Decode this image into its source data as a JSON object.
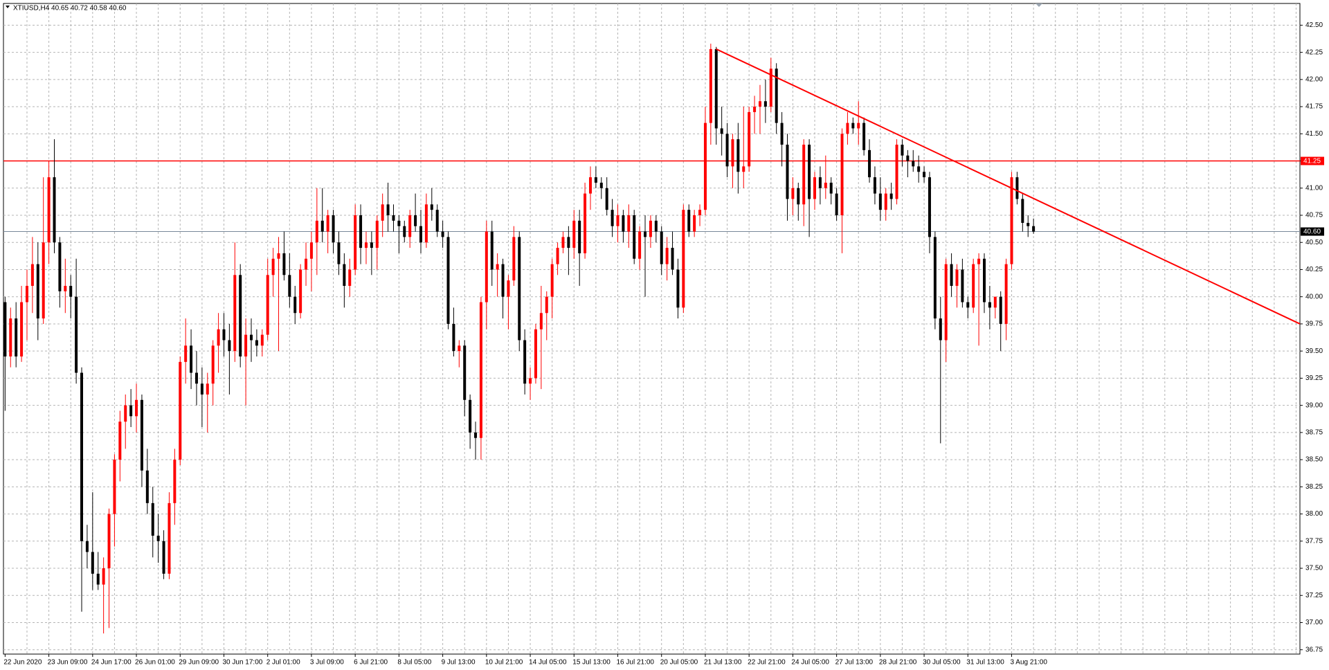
{
  "chart_data": {
    "type": "candlestick",
    "title": "XTIUSD,H4  40.65 40.72 40.58 40.60",
    "up_color": "#ff0000",
    "down_color": "#000000",
    "grid": true,
    "xlim": [
      -0.3,
      236.7
    ],
    "ylim": [
      36.71,
      42.7
    ],
    "yticks": [
      {
        "value": 42.5,
        "label": "42.50"
      },
      {
        "value": 42.25,
        "label": "42.25"
      },
      {
        "value": 42.0,
        "label": "42.00"
      },
      {
        "value": 41.75,
        "label": "41.75"
      },
      {
        "value": 41.5,
        "label": "41.50"
      },
      {
        "value": 41.25,
        "label": "41.25"
      },
      {
        "value": 41.0,
        "label": "41.00"
      },
      {
        "value": 40.75,
        "label": "40.75"
      },
      {
        "value": 40.5,
        "label": "40.50"
      },
      {
        "value": 40.25,
        "label": "40.25"
      },
      {
        "value": 40.0,
        "label": "40.00"
      },
      {
        "value": 39.75,
        "label": "39.75"
      },
      {
        "value": 39.5,
        "label": "39.50"
      },
      {
        "value": 39.25,
        "label": "39.25"
      },
      {
        "value": 39.0,
        "label": "39.00"
      },
      {
        "value": 38.75,
        "label": "38.75"
      },
      {
        "value": 38.5,
        "label": "38.50"
      },
      {
        "value": 38.25,
        "label": "38.25"
      },
      {
        "value": 38.0,
        "label": "38.00"
      },
      {
        "value": 37.75,
        "label": "37.75"
      },
      {
        "value": 37.5,
        "label": "37.50"
      },
      {
        "value": 37.25,
        "label": "37.25"
      },
      {
        "value": 37.0,
        "label": "37.00"
      },
      {
        "value": 36.75,
        "label": "36.75"
      }
    ],
    "hlines": [
      {
        "value": 41.25,
        "label": "41.25",
        "color": "#ff0000"
      },
      {
        "value": 40.6,
        "label": "40.60",
        "color": "#778899"
      }
    ],
    "trendline": {
      "x": [
        130,
        236.7
      ],
      "y": [
        42.28,
        39.75
      ],
      "color": "#ff0000"
    },
    "categories": [
      "22 Jun 2020",
      null,
      null,
      null,
      null,
      null,
      null,
      null,
      "23 Jun 09:00",
      null,
      null,
      null,
      null,
      null,
      null,
      null,
      "24 Jun 17:00",
      null,
      null,
      null,
      null,
      null,
      null,
      null,
      "26 Jun 01:00",
      null,
      null,
      null,
      null,
      null,
      null,
      null,
      "29 Jun 09:00",
      null,
      null,
      null,
      null,
      null,
      null,
      null,
      "30 Jun 17:00",
      null,
      null,
      null,
      null,
      null,
      null,
      null,
      "2 Jul 01:00",
      null,
      null,
      null,
      null,
      null,
      null,
      null,
      "3 Jul 09:00",
      null,
      null,
      null,
      null,
      null,
      null,
      null,
      "6 Jul 21:00",
      null,
      null,
      null,
      null,
      null,
      null,
      null,
      "8 Jul 05:00",
      null,
      null,
      null,
      null,
      null,
      null,
      null,
      "9 Jul 13:00",
      null,
      null,
      null,
      null,
      null,
      null,
      null,
      "10 Jul 21:00",
      null,
      null,
      null,
      null,
      null,
      null,
      null,
      "14 Jul 05:00",
      null,
      null,
      null,
      null,
      null,
      null,
      null,
      "15 Jul 13:00",
      null,
      null,
      null,
      null,
      null,
      null,
      null,
      "16 Jul 21:00",
      null,
      null,
      null,
      null,
      null,
      null,
      null,
      "20 Jul 05:00",
      null,
      null,
      null,
      null,
      null,
      null,
      null,
      "21 Jul 13:00",
      null,
      null,
      null,
      null,
      null,
      null,
      null,
      "22 Jul 21:00",
      null,
      null,
      null,
      null,
      null,
      null,
      null,
      "24 Jul 05:00",
      null,
      null,
      null,
      null,
      null,
      null,
      null,
      "27 Jul 13:00",
      null,
      null,
      null,
      null,
      null,
      null,
      null,
      "28 Jul 21:00",
      null,
      null,
      null,
      null,
      null,
      null,
      null,
      "30 Jul 05:00",
      null,
      null,
      null,
      null,
      null,
      null,
      null,
      "31 Jul 13:00",
      null,
      null,
      null,
      null,
      null,
      null,
      null,
      "3 Aug 21:00",
      null,
      null,
      null,
      null
    ],
    "ohlc": [
      [
        39.95,
        40.0,
        38.95,
        39.45
      ],
      [
        39.45,
        39.9,
        39.35,
        39.8
      ],
      [
        39.8,
        39.95,
        39.35,
        39.45
      ],
      [
        39.45,
        40.1,
        39.4,
        39.95
      ],
      [
        39.95,
        40.25,
        39.6,
        40.1
      ],
      [
        40.1,
        40.55,
        39.85,
        40.3
      ],
      [
        40.3,
        40.5,
        39.6,
        39.8
      ],
      [
        39.8,
        41.1,
        39.75,
        40.5
      ],
      [
        40.5,
        41.25,
        40.3,
        41.1
      ],
      [
        41.1,
        41.45,
        40.4,
        40.5
      ],
      [
        40.5,
        40.55,
        39.9,
        40.05
      ],
      [
        40.05,
        40.35,
        39.85,
        40.1
      ],
      [
        40.1,
        40.2,
        39.8,
        40.0
      ],
      [
        40.0,
        40.35,
        39.2,
        39.3
      ],
      [
        39.3,
        39.35,
        37.1,
        37.75
      ],
      [
        37.75,
        37.9,
        37.5,
        37.65
      ],
      [
        37.65,
        38.2,
        37.3,
        37.45
      ],
      [
        37.45,
        37.65,
        37.3,
        37.35
      ],
      [
        37.35,
        37.6,
        36.9,
        37.5
      ],
      [
        37.5,
        38.05,
        36.95,
        38.0
      ],
      [
        38.0,
        38.55,
        37.7,
        38.5
      ],
      [
        38.5,
        38.95,
        38.3,
        38.85
      ],
      [
        38.85,
        39.1,
        38.6,
        39.0
      ],
      [
        39.0,
        39.15,
        38.8,
        38.9
      ],
      [
        38.9,
        39.2,
        38.75,
        39.05
      ],
      [
        39.05,
        39.1,
        38.25,
        38.4
      ],
      [
        38.4,
        38.6,
        38.0,
        38.1
      ],
      [
        38.1,
        38.25,
        37.6,
        37.8
      ],
      [
        37.8,
        38.0,
        37.55,
        37.75
      ],
      [
        37.75,
        37.85,
        37.4,
        37.45
      ],
      [
        37.45,
        38.2,
        37.4,
        38.1
      ],
      [
        38.1,
        38.6,
        37.9,
        38.5
      ],
      [
        38.5,
        39.45,
        38.45,
        39.4
      ],
      [
        39.4,
        39.8,
        39.2,
        39.55
      ],
      [
        39.55,
        39.7,
        39.15,
        39.3
      ],
      [
        39.3,
        39.5,
        39.0,
        39.2
      ],
      [
        39.2,
        39.35,
        38.8,
        39.1
      ],
      [
        39.1,
        39.3,
        38.75,
        39.2
      ],
      [
        39.2,
        39.6,
        39.0,
        39.55
      ],
      [
        39.55,
        39.85,
        39.3,
        39.7
      ],
      [
        39.7,
        39.85,
        39.45,
        39.6
      ],
      [
        39.6,
        39.75,
        39.1,
        39.5
      ],
      [
        39.5,
        40.5,
        39.4,
        40.2
      ],
      [
        40.2,
        40.3,
        39.35,
        39.45
      ],
      [
        39.45,
        39.8,
        39.0,
        39.65
      ],
      [
        39.65,
        39.8,
        39.4,
        39.6
      ],
      [
        39.6,
        39.7,
        39.45,
        39.55
      ],
      [
        39.55,
        39.7,
        39.45,
        39.65
      ],
      [
        39.65,
        40.35,
        39.6,
        40.2
      ],
      [
        40.2,
        40.45,
        40.0,
        40.35
      ],
      [
        40.35,
        40.55,
        39.5,
        40.4
      ],
      [
        40.4,
        40.6,
        40.15,
        40.2
      ],
      [
        40.2,
        40.4,
        39.9,
        40.0
      ],
      [
        40.0,
        40.1,
        39.75,
        39.85
      ],
      [
        39.85,
        40.3,
        39.8,
        40.25
      ],
      [
        40.25,
        40.5,
        40.1,
        40.35
      ],
      [
        40.35,
        40.6,
        40.05,
        40.5
      ],
      [
        40.5,
        41.0,
        40.2,
        40.7
      ],
      [
        40.7,
        41.0,
        40.5,
        40.6
      ],
      [
        40.6,
        40.8,
        40.4,
        40.75
      ],
      [
        40.75,
        40.8,
        40.4,
        40.5
      ],
      [
        40.5,
        40.6,
        40.2,
        40.3
      ],
      [
        40.3,
        40.4,
        39.9,
        40.1
      ],
      [
        40.1,
        40.35,
        40.0,
        40.25
      ],
      [
        40.25,
        40.85,
        40.2,
        40.75
      ],
      [
        40.75,
        40.85,
        40.3,
        40.45
      ],
      [
        40.45,
        40.6,
        40.3,
        40.5
      ],
      [
        40.5,
        40.6,
        40.2,
        40.45
      ],
      [
        40.45,
        40.75,
        40.25,
        40.7
      ],
      [
        40.7,
        40.95,
        40.55,
        40.85
      ],
      [
        40.85,
        41.05,
        40.6,
        40.75
      ],
      [
        40.75,
        40.85,
        40.6,
        40.7
      ],
      [
        40.7,
        40.75,
        40.4,
        40.65
      ],
      [
        40.65,
        40.7,
        40.5,
        40.55
      ],
      [
        40.55,
        40.8,
        40.45,
        40.75
      ],
      [
        40.75,
        40.95,
        40.6,
        40.65
      ],
      [
        40.65,
        40.8,
        40.4,
        40.5
      ],
      [
        40.5,
        40.95,
        40.45,
        40.85
      ],
      [
        40.85,
        41.0,
        40.7,
        40.8
      ],
      [
        40.8,
        40.85,
        40.55,
        40.6
      ],
      [
        40.6,
        40.7,
        40.45,
        40.55
      ],
      [
        40.55,
        40.6,
        39.7,
        39.75
      ],
      [
        39.75,
        39.9,
        39.45,
        39.5
      ],
      [
        39.5,
        39.6,
        39.35,
        39.55
      ],
      [
        39.55,
        39.6,
        38.9,
        39.05
      ],
      [
        39.05,
        39.1,
        38.6,
        38.75
      ],
      [
        38.75,
        38.85,
        38.5,
        38.7
      ],
      [
        38.7,
        40.0,
        38.5,
        39.95
      ],
      [
        39.95,
        40.7,
        39.7,
        40.6
      ],
      [
        40.6,
        40.7,
        40.1,
        40.25
      ],
      [
        40.25,
        40.4,
        40.0,
        40.3
      ],
      [
        40.3,
        40.35,
        39.8,
        40.0
      ],
      [
        40.0,
        40.2,
        39.7,
        40.15
      ],
      [
        40.15,
        40.65,
        40.1,
        40.55
      ],
      [
        40.55,
        40.6,
        39.5,
        39.6
      ],
      [
        39.6,
        39.7,
        39.1,
        39.2
      ],
      [
        39.2,
        39.35,
        39.05,
        39.25
      ],
      [
        39.25,
        39.75,
        39.2,
        39.7
      ],
      [
        39.7,
        40.1,
        39.15,
        39.85
      ],
      [
        39.85,
        40.05,
        39.6,
        40.0
      ],
      [
        40.0,
        40.35,
        39.8,
        40.3
      ],
      [
        40.3,
        40.5,
        40.2,
        40.45
      ],
      [
        40.45,
        40.6,
        40.4,
        40.55
      ],
      [
        40.55,
        40.65,
        40.2,
        40.45
      ],
      [
        40.45,
        40.8,
        40.35,
        40.7
      ],
      [
        40.7,
        40.8,
        40.1,
        40.4
      ],
      [
        40.4,
        41.05,
        40.35,
        40.95
      ],
      [
        40.95,
        41.2,
        40.8,
        41.1
      ],
      [
        41.1,
        41.2,
        41.0,
        41.05
      ],
      [
        41.05,
        41.1,
        40.9,
        41.0
      ],
      [
        41.0,
        41.1,
        40.75,
        40.8
      ],
      [
        40.8,
        40.9,
        40.55,
        40.65
      ],
      [
        40.65,
        40.85,
        40.5,
        40.75
      ],
      [
        40.75,
        40.8,
        40.5,
        40.6
      ],
      [
        40.6,
        40.85,
        40.45,
        40.75
      ],
      [
        40.75,
        40.8,
        40.3,
        40.35
      ],
      [
        40.35,
        40.65,
        40.25,
        40.6
      ],
      [
        40.6,
        40.75,
        40.0,
        40.55
      ],
      [
        40.55,
        40.75,
        40.45,
        40.7
      ],
      [
        40.7,
        40.75,
        40.5,
        40.6
      ],
      [
        40.6,
        40.65,
        40.2,
        40.3
      ],
      [
        40.3,
        40.55,
        40.15,
        40.45
      ],
      [
        40.45,
        40.6,
        40.2,
        40.25
      ],
      [
        40.25,
        40.35,
        39.8,
        39.9
      ],
      [
        39.9,
        40.85,
        39.85,
        40.8
      ],
      [
        40.8,
        40.85,
        40.55,
        40.6
      ],
      [
        40.6,
        40.8,
        40.55,
        40.75
      ],
      [
        40.75,
        40.85,
        40.65,
        40.8
      ],
      [
        40.8,
        41.75,
        40.75,
        41.6
      ],
      [
        41.6,
        42.33,
        41.4,
        42.28
      ],
      [
        42.28,
        42.3,
        41.4,
        41.55
      ],
      [
        41.55,
        41.75,
        41.3,
        41.5
      ],
      [
        41.5,
        41.6,
        41.1,
        41.2
      ],
      [
        41.2,
        41.5,
        41.0,
        41.45
      ],
      [
        41.45,
        41.6,
        40.95,
        41.15
      ],
      [
        41.15,
        41.75,
        41.0,
        41.2
      ],
      [
        41.2,
        41.75,
        41.15,
        41.7
      ],
      [
        41.7,
        41.85,
        41.5,
        41.75
      ],
      [
        41.75,
        41.95,
        41.5,
        41.8
      ],
      [
        41.8,
        42.0,
        41.6,
        41.75
      ],
      [
        41.75,
        42.2,
        41.7,
        42.1
      ],
      [
        42.1,
        42.15,
        41.5,
        41.6
      ],
      [
        41.6,
        41.7,
        41.2,
        41.4
      ],
      [
        41.4,
        41.5,
        40.7,
        40.9
      ],
      [
        40.9,
        41.1,
        40.75,
        41.0
      ],
      [
        41.0,
        41.05,
        40.7,
        40.85
      ],
      [
        40.85,
        41.45,
        40.65,
        41.4
      ],
      [
        41.4,
        41.45,
        40.55,
        40.9
      ],
      [
        40.9,
        41.15,
        40.8,
        41.1
      ],
      [
        41.1,
        41.2,
        40.85,
        41.0
      ],
      [
        41.0,
        41.3,
        40.9,
        41.05
      ],
      [
        41.05,
        41.1,
        40.85,
        40.95
      ],
      [
        40.95,
        41.0,
        40.7,
        40.75
      ],
      [
        40.75,
        41.55,
        40.4,
        41.5
      ],
      [
        41.5,
        41.7,
        41.4,
        41.6
      ],
      [
        41.6,
        41.65,
        41.5,
        41.55
      ],
      [
        41.55,
        41.8,
        41.4,
        41.6
      ],
      [
        41.6,
        41.65,
        41.3,
        41.35
      ],
      [
        41.35,
        41.45,
        41.05,
        41.1
      ],
      [
        41.1,
        41.2,
        40.85,
        40.95
      ],
      [
        40.95,
        41.1,
        40.7,
        40.8
      ],
      [
        40.8,
        41.0,
        40.7,
        40.95
      ],
      [
        40.95,
        41.05,
        40.8,
        40.9
      ],
      [
        40.9,
        41.45,
        40.85,
        41.4
      ],
      [
        41.4,
        41.45,
        41.2,
        41.3
      ],
      [
        41.3,
        41.35,
        41.1,
        41.25
      ],
      [
        41.25,
        41.35,
        41.15,
        41.2
      ],
      [
        41.2,
        41.3,
        41.05,
        41.15
      ],
      [
        41.15,
        41.2,
        41.05,
        41.1
      ],
      [
        41.1,
        41.15,
        40.4,
        40.55
      ],
      [
        40.55,
        40.6,
        39.7,
        39.8
      ],
      [
        39.8,
        40.0,
        38.65,
        39.6
      ],
      [
        39.6,
        40.35,
        39.4,
        40.3
      ],
      [
        40.3,
        40.4,
        40.0,
        40.1
      ],
      [
        40.1,
        40.3,
        39.9,
        40.25
      ],
      [
        40.25,
        40.35,
        39.9,
        39.95
      ],
      [
        39.95,
        40.0,
        39.8,
        39.9
      ],
      [
        39.9,
        40.35,
        39.85,
        40.3
      ],
      [
        40.3,
        40.4,
        39.55,
        40.35
      ],
      [
        40.35,
        40.4,
        39.85,
        39.95
      ],
      [
        39.95,
        40.1,
        39.7,
        39.9
      ],
      [
        39.9,
        40.0,
        39.8,
        40.0
      ],
      [
        40.0,
        40.05,
        39.5,
        39.75
      ],
      [
        39.75,
        40.35,
        39.6,
        40.3
      ],
      [
        40.3,
        41.15,
        40.25,
        41.1
      ],
      [
        41.1,
        41.15,
        40.85,
        40.9
      ],
      [
        40.9,
        40.95,
        40.6,
        40.68
      ],
      [
        40.68,
        40.75,
        40.55,
        40.65
      ],
      [
        40.65,
        40.72,
        40.58,
        40.6
      ]
    ]
  }
}
